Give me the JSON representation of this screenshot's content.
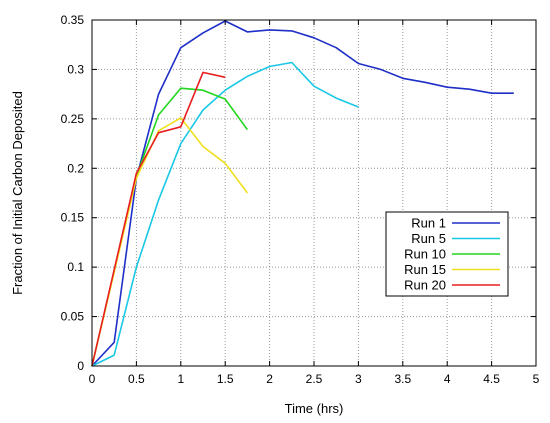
{
  "chart_data": {
    "type": "line",
    "title": "",
    "xlabel": "Time (hrs)",
    "ylabel": "Fraction of Initial Carbon Deposited",
    "xlim": [
      0,
      5
    ],
    "ylim": [
      0,
      0.35
    ],
    "x_ticks": [
      "0",
      "0.5",
      "1",
      "1.5",
      "2",
      "2.5",
      "3",
      "3.5",
      "4",
      "4.5",
      "5"
    ],
    "y_ticks": [
      "0",
      "0.05",
      "0.1",
      "0.15",
      "0.2",
      "0.25",
      "0.3",
      "0.35"
    ],
    "grid": true,
    "legend_position": "right-middle",
    "series": [
      {
        "name": "Run 1",
        "color": "#1e2fc8",
        "x": [
          0,
          0.25,
          0.5,
          0.75,
          1.0,
          1.25,
          1.5,
          1.75,
          2.0,
          2.25,
          2.5,
          2.75,
          3.0,
          3.25,
          3.5,
          3.75,
          4.0,
          4.25,
          4.5,
          4.75
        ],
        "y": [
          0,
          0.024,
          0.19,
          0.275,
          0.322,
          0.337,
          0.349,
          0.338,
          0.34,
          0.339,
          0.332,
          0.322,
          0.306,
          0.3,
          0.291,
          0.287,
          0.282,
          0.28,
          0.276,
          0.276
        ]
      },
      {
        "name": "Run 5",
        "color": "#19c8e6",
        "x": [
          0,
          0.25,
          0.5,
          0.75,
          1.0,
          1.25,
          1.5,
          1.75,
          2.0,
          2.25,
          2.5,
          2.75,
          3.0
        ],
        "y": [
          0,
          0.011,
          0.1,
          0.168,
          0.225,
          0.259,
          0.279,
          0.293,
          0.303,
          0.307,
          0.283,
          0.271,
          0.262
        ]
      },
      {
        "name": "Run 10",
        "color": "#22d61e",
        "x": [
          0,
          0.5,
          0.75,
          1.0,
          1.25,
          1.5,
          1.75
        ],
        "y": [
          0,
          0.192,
          0.254,
          0.281,
          0.279,
          0.27,
          0.239
        ]
      },
      {
        "name": "Run 15",
        "color": "#f0e01e",
        "x": [
          0,
          0.5,
          0.75,
          1.0,
          1.25,
          1.5,
          1.75
        ],
        "y": [
          0,
          0.19,
          0.238,
          0.251,
          0.222,
          0.205,
          0.175
        ]
      },
      {
        "name": "Run 20",
        "color": "#e81e1e",
        "x": [
          0,
          0.5,
          0.75,
          1.0,
          1.25,
          1.5
        ],
        "y": [
          0,
          0.195,
          0.236,
          0.242,
          0.297,
          0.292
        ]
      }
    ]
  }
}
